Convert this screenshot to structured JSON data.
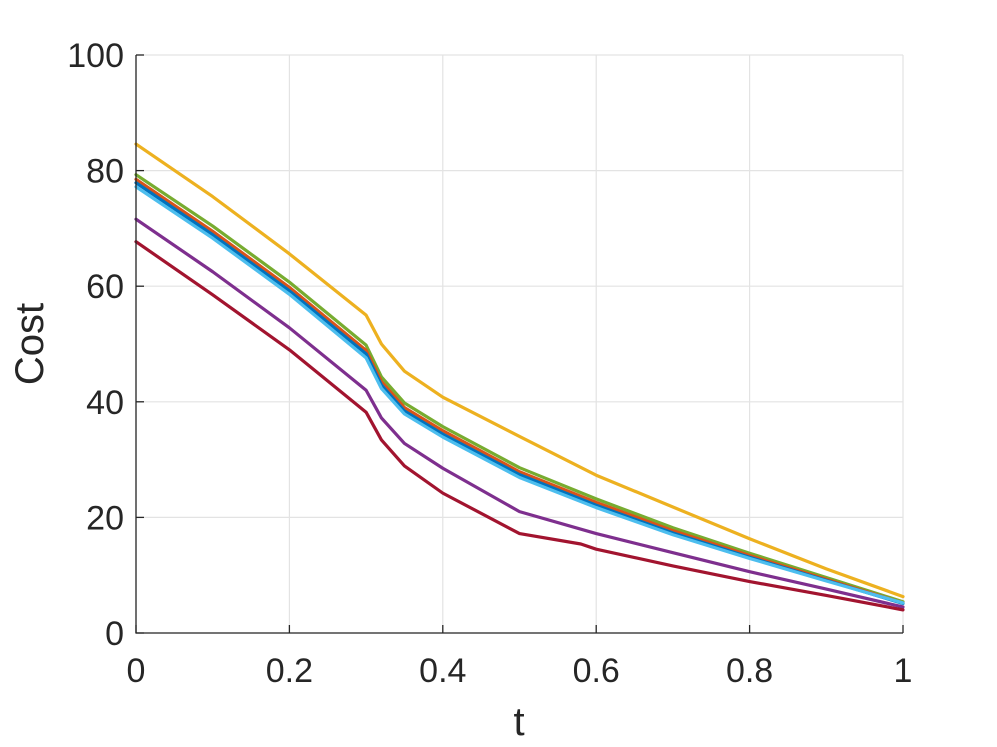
{
  "chart_data": {
    "type": "line",
    "title": "",
    "xlabel": "t",
    "ylabel": "Cost",
    "xlim": [
      0,
      1
    ],
    "ylim": [
      0,
      100
    ],
    "xticks": [
      0,
      0.2,
      0.4,
      0.6,
      0.8,
      1
    ],
    "xtick_labels": [
      "0",
      "0.2",
      "0.4",
      "0.6",
      "0.8",
      "1"
    ],
    "yticks": [
      0,
      20,
      40,
      60,
      80,
      100
    ],
    "ytick_labels": [
      "0",
      "20",
      "40",
      "60",
      "80",
      "100"
    ],
    "grid": true,
    "legend": "none",
    "series": [
      {
        "color": "#EDB120",
        "x": [
          0,
          0.1,
          0.2,
          0.3,
          0.32,
          0.35,
          0.4,
          0.5,
          0.6,
          0.7,
          0.8,
          0.9,
          1
        ],
        "y": [
          84.6,
          75.5,
          65.6,
          55.0,
          50.0,
          45.3,
          40.8,
          34.0,
          27.3,
          21.8,
          16.3,
          11.1,
          6.3
        ]
      },
      {
        "color": "#77AC30",
        "x": [
          0,
          0.1,
          0.2,
          0.3,
          0.32,
          0.35,
          0.4,
          0.5,
          0.6,
          0.7,
          0.8,
          0.9,
          1
        ],
        "y": [
          79.3,
          70.4,
          60.7,
          49.8,
          44.3,
          39.8,
          35.7,
          28.6,
          23.2,
          18.2,
          13.8,
          9.6,
          5.4
        ]
      },
      {
        "color": "#D95319",
        "x": [
          0,
          0.1,
          0.2,
          0.3,
          0.32,
          0.35,
          0.4,
          0.5,
          0.6,
          0.7,
          0.8,
          0.9,
          1
        ],
        "y": [
          78.5,
          69.5,
          59.8,
          48.9,
          43.5,
          39.0,
          35.0,
          27.9,
          22.6,
          17.7,
          13.4,
          9.3,
          5.2
        ]
      },
      {
        "color": "#0072BD",
        "x": [
          0,
          0.1,
          0.2,
          0.3,
          0.32,
          0.35,
          0.4,
          0.5,
          0.6,
          0.7,
          0.8,
          0.9,
          1
        ],
        "y": [
          77.9,
          68.9,
          59.2,
          48.3,
          42.9,
          38.4,
          34.4,
          27.4,
          22.1,
          17.3,
          13.1,
          9.1,
          5.1
        ]
      },
      {
        "color": "#4DBEEE",
        "x": [
          0,
          0.1,
          0.2,
          0.3,
          0.32,
          0.35,
          0.4,
          0.5,
          0.6,
          0.7,
          0.8,
          0.9,
          1
        ],
        "y": [
          77.2,
          68.3,
          58.6,
          47.6,
          42.3,
          37.9,
          33.9,
          26.9,
          21.7,
          17.0,
          12.9,
          9.0,
          5.2
        ]
      },
      {
        "color": "#7E2F8E",
        "x": [
          0,
          0.1,
          0.2,
          0.3,
          0.32,
          0.35,
          0.4,
          0.5,
          0.6,
          0.7,
          0.8,
          0.9,
          1
        ],
        "y": [
          71.6,
          62.5,
          52.8,
          42.0,
          37.2,
          32.8,
          28.5,
          21.0,
          17.2,
          13.9,
          10.6,
          7.6,
          4.5
        ]
      },
      {
        "color": "#A2142F",
        "x": [
          0,
          0.1,
          0.2,
          0.3,
          0.32,
          0.35,
          0.4,
          0.5,
          0.58,
          0.6,
          0.7,
          0.8,
          0.9,
          1
        ],
        "y": [
          67.7,
          58.5,
          49.0,
          38.2,
          33.4,
          28.9,
          24.2,
          17.2,
          15.4,
          14.5,
          11.6,
          8.9,
          6.5,
          4.0
        ]
      }
    ]
  }
}
